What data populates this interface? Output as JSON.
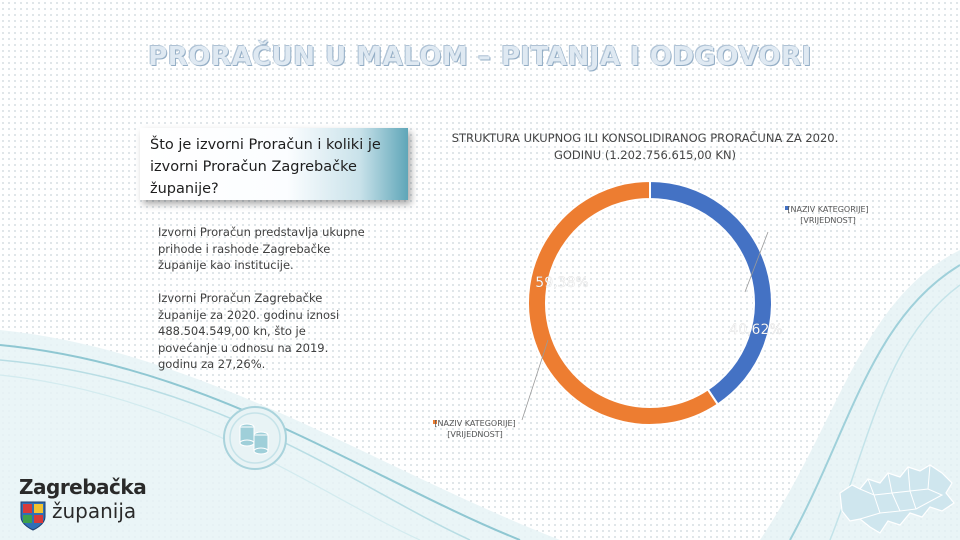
{
  "page": {
    "title": "PRORAČUN U MALOM – PITANJA I ODGOVORI",
    "question_line1": "Što je izvorni Proračun i koliki je",
    "question_line2": "izvorni Proračun Zagrebačke",
    "question_line3": "županije?",
    "p1_line1": "Izvorni Proračun predstavlja ukupne",
    "p1_line2": "prihode i rashode Zagrebačke",
    "p1_line3": "županije kao institucije.",
    "p2_line1": "Izvorni Proračun Zagrebačke",
    "p2_line2": "županije za 2020. godinu iznosi",
    "p2_line3": "488.504.549,00  kn, što je",
    "p2_line4": "povećanje u odnosu na 2019.",
    "p2_line5": "godinu za  27,26%.",
    "logo_line1": "Zagrebačka",
    "logo_line2": "županija"
  },
  "chart_data": {
    "type": "pie",
    "title_line1": "STRUKTURA UKUPNOG ILI KONSOLIDIRANOG PRORAČUNA ZA 2020.",
    "title_line2": "GODINU (1.202.756.615,00 KN)",
    "slices": [
      {
        "value": 40.62,
        "label": "40,62%",
        "callout_line1": "[NAZIV KATEGORIJE]",
        "callout_line2": "[VRIJEDNOST]",
        "color": "#4472c4"
      },
      {
        "value": 59.38,
        "label": "59,38%",
        "callout_line1": "[NAZIV KATEGORIJE]",
        "callout_line2": "[VRIJEDNOST]",
        "color": "#ed7d31"
      }
    ]
  }
}
